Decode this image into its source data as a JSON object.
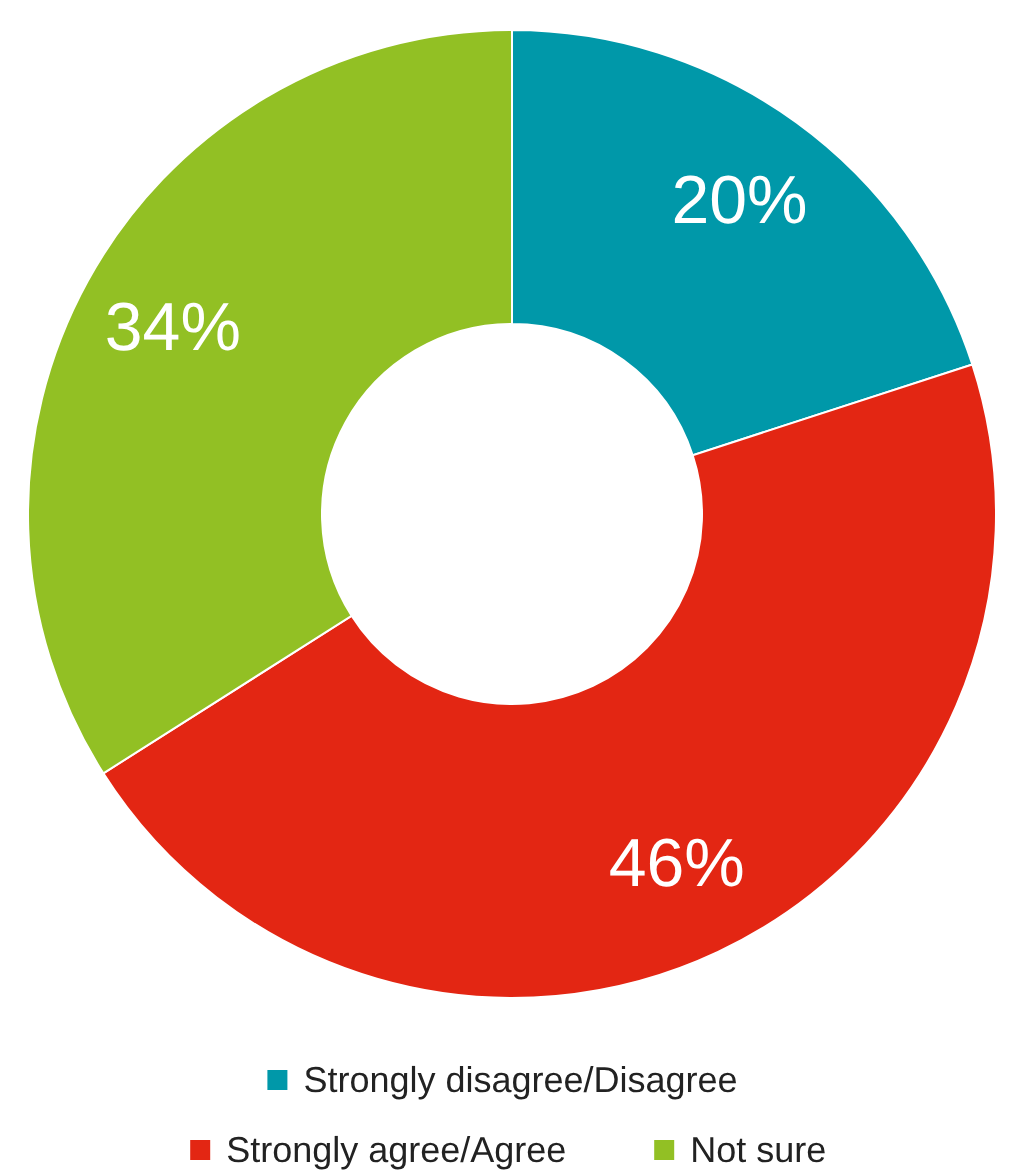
{
  "chart_data": {
    "type": "donut",
    "categories": [
      "Strongly disagree/Disagree",
      "Strongly agree/Agree",
      "Not sure"
    ],
    "values": [
      20,
      46,
      34
    ],
    "colors": [
      "#0098a9",
      "#e32613",
      "#92c024"
    ],
    "value_labels": [
      "20%",
      "46%",
      "34%"
    ],
    "legend": "bottom"
  }
}
